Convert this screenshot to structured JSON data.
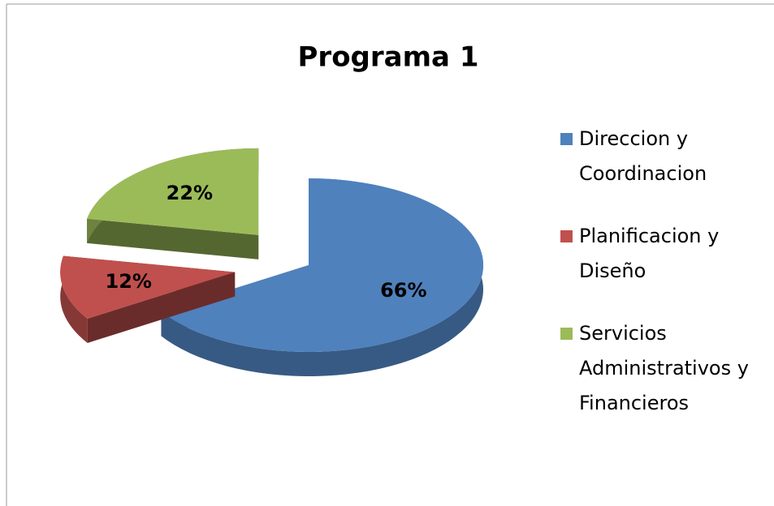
{
  "chart_data": {
    "type": "pie",
    "title": "Programa 1",
    "categories": [
      "Direccion y Coordinacion",
      "Planificacion y Diseño",
      "Servicios Administrativos y Financieros"
    ],
    "values": [
      66,
      12,
      22
    ],
    "value_labels": [
      "66%",
      "12%",
      "22%"
    ],
    "colors": [
      "#4f81bd",
      "#c0504d",
      "#9bbb59"
    ],
    "legend": "right"
  }
}
